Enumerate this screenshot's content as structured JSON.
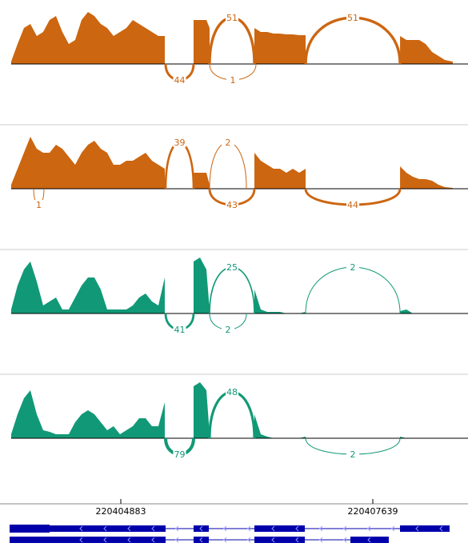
{
  "chart_data": {
    "type": "sashimi",
    "xlim": [
      220403562,
      220408680
    ],
    "xticks": [
      220404883,
      220407639
    ],
    "x": [
      220403684,
      220403754,
      220403824,
      220403894,
      220403964,
      220404034,
      220404104,
      220404174,
      220404244,
      220404314,
      220404384,
      220404454,
      220404524,
      220404594,
      220404664,
      220404734,
      220404804,
      220404874,
      220404944,
      220405014,
      220405084,
      220405154,
      220405224,
      220405294,
      220405364,
      220405522,
      220405679,
      220405749,
      220405819,
      220405854,
      220406099,
      220406344,
      220406414,
      220406484,
      220406554,
      220406624,
      220406694,
      220406764,
      220406834,
      220406904,
      220407412,
      220407937,
      220408007,
      220408077,
      220408147,
      220408217,
      220408287,
      220408357,
      220408427,
      220408514
    ],
    "ylim": [
      0,
      75
    ],
    "tracks": [
      {
        "color": "#cc6611",
        "values": [
          3,
          25,
          45,
          50,
          35,
          40,
          55,
          60,
          40,
          25,
          30,
          55,
          65,
          60,
          50,
          45,
          35,
          40,
          45,
          55,
          50,
          45,
          40,
          35,
          35,
          null,
          55,
          55,
          55,
          45,
          null,
          45,
          40,
          40,
          38,
          38,
          37,
          37,
          36,
          36,
          null,
          35,
          30,
          30,
          30,
          25,
          15,
          10,
          5,
          3
        ],
        "junctions": [
          {
            "count": 44,
            "start": 220405373,
            "end": 220405679
          },
          {
            "count": 1,
            "start": 220405854,
            "end": 220406362
          },
          {
            "count": 51,
            "start": 220405854,
            "end": 220406344
          },
          {
            "count": 51,
            "start": 220406904,
            "end": 220407937
          }
        ]
      },
      {
        "color": "#cc6611",
        "values": [
          5,
          25,
          45,
          65,
          50,
          45,
          45,
          55,
          50,
          40,
          30,
          45,
          55,
          60,
          50,
          45,
          30,
          30,
          35,
          35,
          40,
          45,
          35,
          30,
          25,
          null,
          20,
          20,
          20,
          5,
          null,
          45,
          35,
          30,
          25,
          25,
          20,
          25,
          20,
          25,
          null,
          28,
          20,
          15,
          12,
          12,
          10,
          5,
          2,
          1
        ],
        "junctions": [
          {
            "count": 1,
            "start": 220403930,
            "end": 220404043
          },
          {
            "count": 39,
            "start": 220405373,
            "end": 220405679
          },
          {
            "count": 2,
            "start": 220405854,
            "end": 220406257
          },
          {
            "count": 43,
            "start": 220405854,
            "end": 220406344
          },
          {
            "count": 44,
            "start": 220406904,
            "end": 220407937
          }
        ]
      },
      {
        "color": "#119977",
        "values": [
          5,
          35,
          55,
          65,
          40,
          10,
          15,
          20,
          5,
          5,
          20,
          35,
          45,
          45,
          30,
          5,
          5,
          5,
          5,
          10,
          20,
          25,
          15,
          10,
          45,
          null,
          65,
          70,
          55,
          5,
          null,
          30,
          5,
          2,
          2,
          2,
          0,
          0,
          0,
          2,
          null,
          3,
          5,
          0,
          0,
          0,
          0,
          0,
          0,
          0
        ],
        "junctions": [
          {
            "count": 41,
            "start": 220405373,
            "end": 220405679
          },
          {
            "count": 2,
            "start": 220405854,
            "end": 220406257
          },
          {
            "count": 25,
            "start": 220405854,
            "end": 220406344
          },
          {
            "count": 2,
            "start": 220406904,
            "end": 220407937
          }
        ]
      },
      {
        "color": "#119977",
        "values": [
          5,
          30,
          50,
          60,
          30,
          10,
          8,
          5,
          5,
          5,
          20,
          30,
          35,
          30,
          20,
          10,
          15,
          5,
          10,
          15,
          25,
          25,
          15,
          15,
          45,
          null,
          65,
          70,
          60,
          5,
          null,
          30,
          5,
          2,
          0,
          0,
          0,
          0,
          0,
          2,
          null,
          2,
          0,
          0,
          0,
          0,
          0,
          0,
          0,
          0
        ],
        "junctions": [
          {
            "count": 79,
            "start": 220405373,
            "end": 220405679
          },
          {
            "count": 48,
            "start": 220405854,
            "end": 220406344
          },
          {
            "count": 2,
            "start": 220406904,
            "end": 220407937
          }
        ]
      }
    ]
  }
}
